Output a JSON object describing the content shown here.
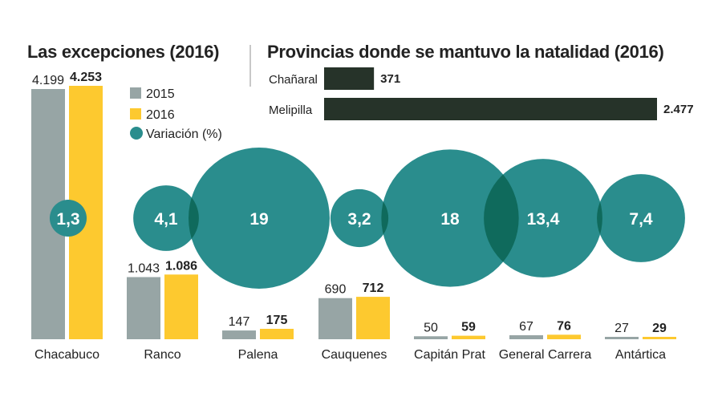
{
  "left_title": "Las excepciones (2016)",
  "right_title": "Provincias donde se mantuvo la natalidad (2016)",
  "colors": {
    "y2015": "#97a5a5",
    "y2016": "#fdc92f",
    "variation": "#2a8d8d",
    "overlap": "#0f6a5c",
    "hbar": "#263329",
    "text": "#222222"
  },
  "chart_data": [
    {
      "type": "bar",
      "title": "Las excepciones (2016)",
      "categories": [
        "Chacabuco",
        "Ranco",
        "Palena",
        "Cauquenes",
        "Capitán Prat",
        "General Carrera",
        "Antártica"
      ],
      "series": [
        {
          "name": "2015",
          "values": [
            4199,
            1043,
            147,
            690,
            50,
            67,
            27
          ],
          "labels": [
            "4.199",
            "1.043",
            "147",
            "690",
            "50",
            "67",
            "27"
          ]
        },
        {
          "name": "2016",
          "values": [
            4253,
            1086,
            175,
            712,
            59,
            76,
            29
          ],
          "labels": [
            "4.253",
            "1.086",
            "175",
            "712",
            "59",
            "76",
            "29"
          ]
        }
      ],
      "variation": {
        "name": "Variación (%)",
        "values": [
          1.3,
          4.1,
          19,
          3.2,
          18,
          13.4,
          7.4
        ],
        "labels": [
          "1,3",
          "4,1",
          "19",
          "3,2",
          "18",
          "13,4",
          "7,4"
        ]
      },
      "legend": [
        "2015",
        "2016",
        "Variación (%)"
      ],
      "legend_position": "top-left"
    },
    {
      "type": "bar",
      "orientation": "horizontal",
      "title": "Provincias donde se mantuvo la natalidad (2016)",
      "categories": [
        "Chañaral",
        "Melipilla"
      ],
      "values": [
        371,
        2477
      ],
      "labels": [
        "371",
        "2.477"
      ]
    }
  ]
}
